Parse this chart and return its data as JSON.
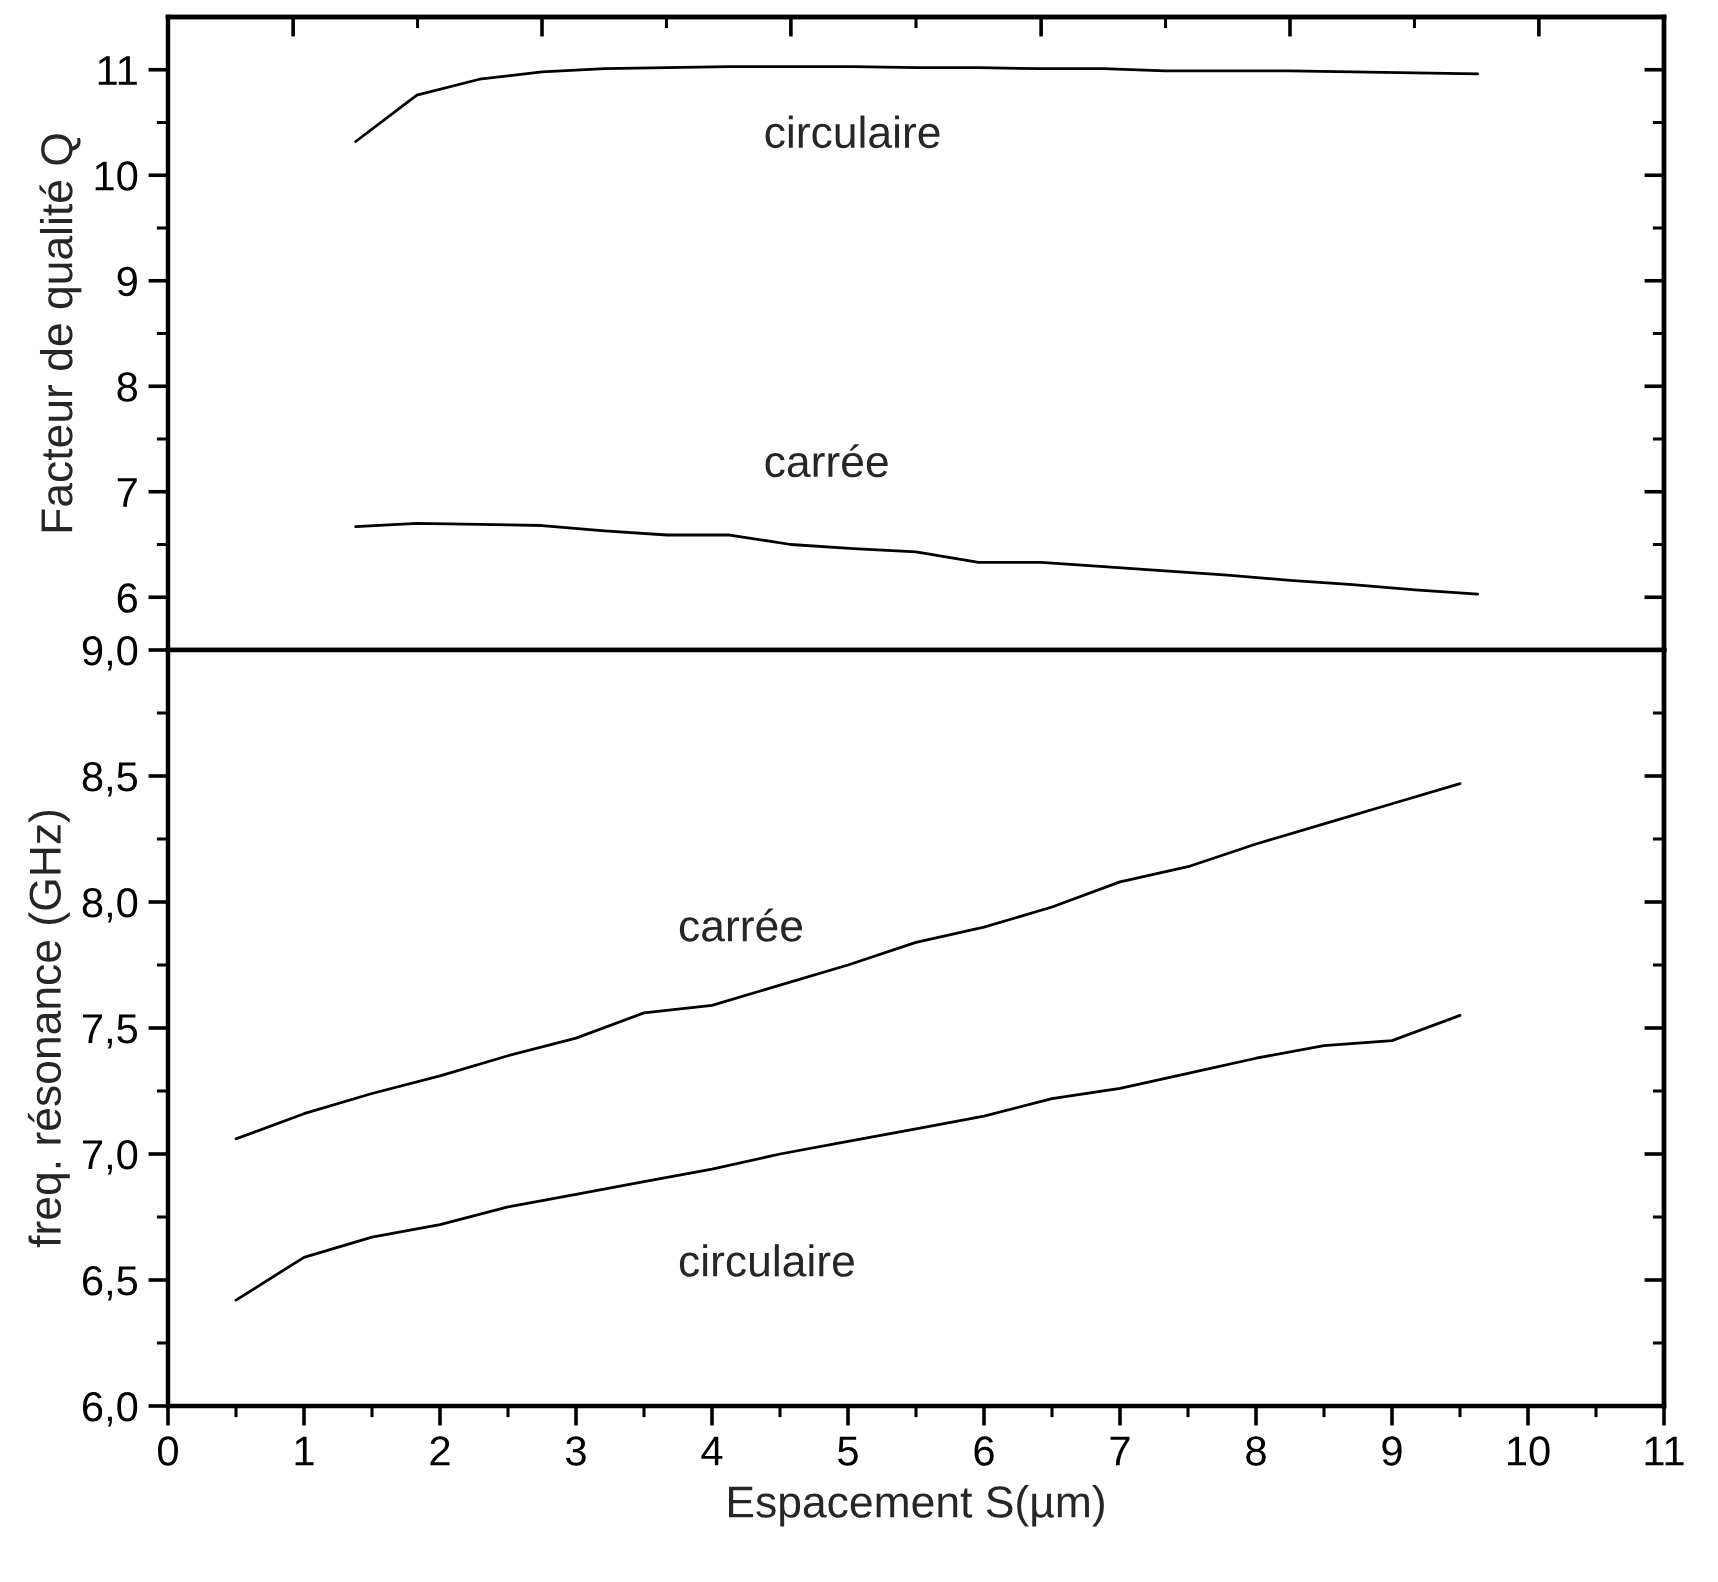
{
  "chart_data": [
    {
      "type": "line",
      "ylabel": "Facteur de qualité Q",
      "xlim": [
        0,
        11
      ],
      "xticks": [
        {
          "value": 0.92,
          "label": null
        },
        {
          "value": 2.75,
          "label": null
        },
        {
          "value": 4.58,
          "label": null
        },
        {
          "value": 6.42,
          "label": null
        },
        {
          "value": 8.25,
          "label": null
        },
        {
          "value": 10.08,
          "label": null
        }
      ],
      "ylim": [
        5.5,
        11.5
      ],
      "yticks": [
        6,
        7,
        8,
        9,
        10,
        11
      ],
      "tick_labels": "y",
      "series": [
        {
          "name": "circulaire",
          "color": "#000000",
          "x": [
            1.38,
            1.83,
            2.29,
            2.75,
            3.21,
            3.67,
            4.13,
            4.58,
            5.04,
            5.5,
            5.96,
            6.42,
            6.88,
            7.33,
            7.79,
            8.25,
            8.71,
            9.17,
            9.63
          ],
          "values": [
            10.32,
            10.76,
            10.91,
            10.98,
            11.01,
            11.02,
            11.03,
            11.03,
            11.03,
            11.02,
            11.02,
            11.01,
            11.01,
            10.99,
            10.99,
            10.99,
            10.98,
            10.97,
            10.96
          ]
        },
        {
          "name": "carrée",
          "color": "#000000",
          "x": [
            1.38,
            1.83,
            2.29,
            2.75,
            3.21,
            3.67,
            4.13,
            4.58,
            5.04,
            5.5,
            5.96,
            6.42,
            6.88,
            7.33,
            7.79,
            8.25,
            8.71,
            9.17,
            9.63
          ],
          "values": [
            6.67,
            6.7,
            6.69,
            6.68,
            6.63,
            6.59,
            6.59,
            6.5,
            6.46,
            6.43,
            6.33,
            6.33,
            6.29,
            6.25,
            6.21,
            6.16,
            6.12,
            6.07,
            6.03
          ]
        }
      ]
    },
    {
      "type": "line",
      "xlabel": "Espacement S(µm)",
      "ylabel": "freq. résonance (GHz)",
      "xlim": [
        0,
        11
      ],
      "xticks": [
        0,
        1,
        2,
        3,
        4,
        5,
        6,
        7,
        8,
        9,
        10,
        11
      ],
      "ylim": [
        6.0,
        9.0
      ],
      "yticks": [
        {
          "value": 6.0,
          "label": "6,0"
        },
        {
          "value": 6.5,
          "label": "6,5"
        },
        {
          "value": 7.0,
          "label": "7,0"
        },
        {
          "value": 7.5,
          "label": "7,5"
        },
        {
          "value": 8.0,
          "label": "8,0"
        },
        {
          "value": 8.5,
          "label": "8,5"
        },
        {
          "value": 9.0,
          "label": "9,0"
        }
      ],
      "series": [
        {
          "name": "carrée",
          "color": "#000000",
          "x": [
            0.5,
            1,
            1.5,
            2,
            2.5,
            3,
            3.5,
            4,
            4.5,
            5,
            5.5,
            6,
            6.5,
            7,
            7.5,
            8,
            8.5,
            9,
            9.5
          ],
          "values": [
            7.06,
            7.16,
            7.24,
            7.31,
            7.39,
            7.46,
            7.56,
            7.59,
            7.67,
            7.75,
            7.84,
            7.9,
            7.98,
            8.08,
            8.14,
            8.23,
            8.31,
            8.39,
            8.47
          ]
        },
        {
          "name": "circulaire",
          "color": "#000000",
          "x": [
            0.5,
            1,
            1.5,
            2,
            2.5,
            3,
            3.5,
            4,
            4.5,
            5,
            5.5,
            6,
            6.5,
            7,
            7.5,
            8,
            8.5,
            9,
            9.5
          ],
          "values": [
            6.42,
            6.59,
            6.67,
            6.72,
            6.79,
            6.84,
            6.89,
            6.94,
            7.0,
            7.05,
            7.1,
            7.15,
            7.22,
            7.26,
            7.32,
            7.38,
            7.43,
            7.45,
            7.55
          ]
        }
      ]
    }
  ]
}
